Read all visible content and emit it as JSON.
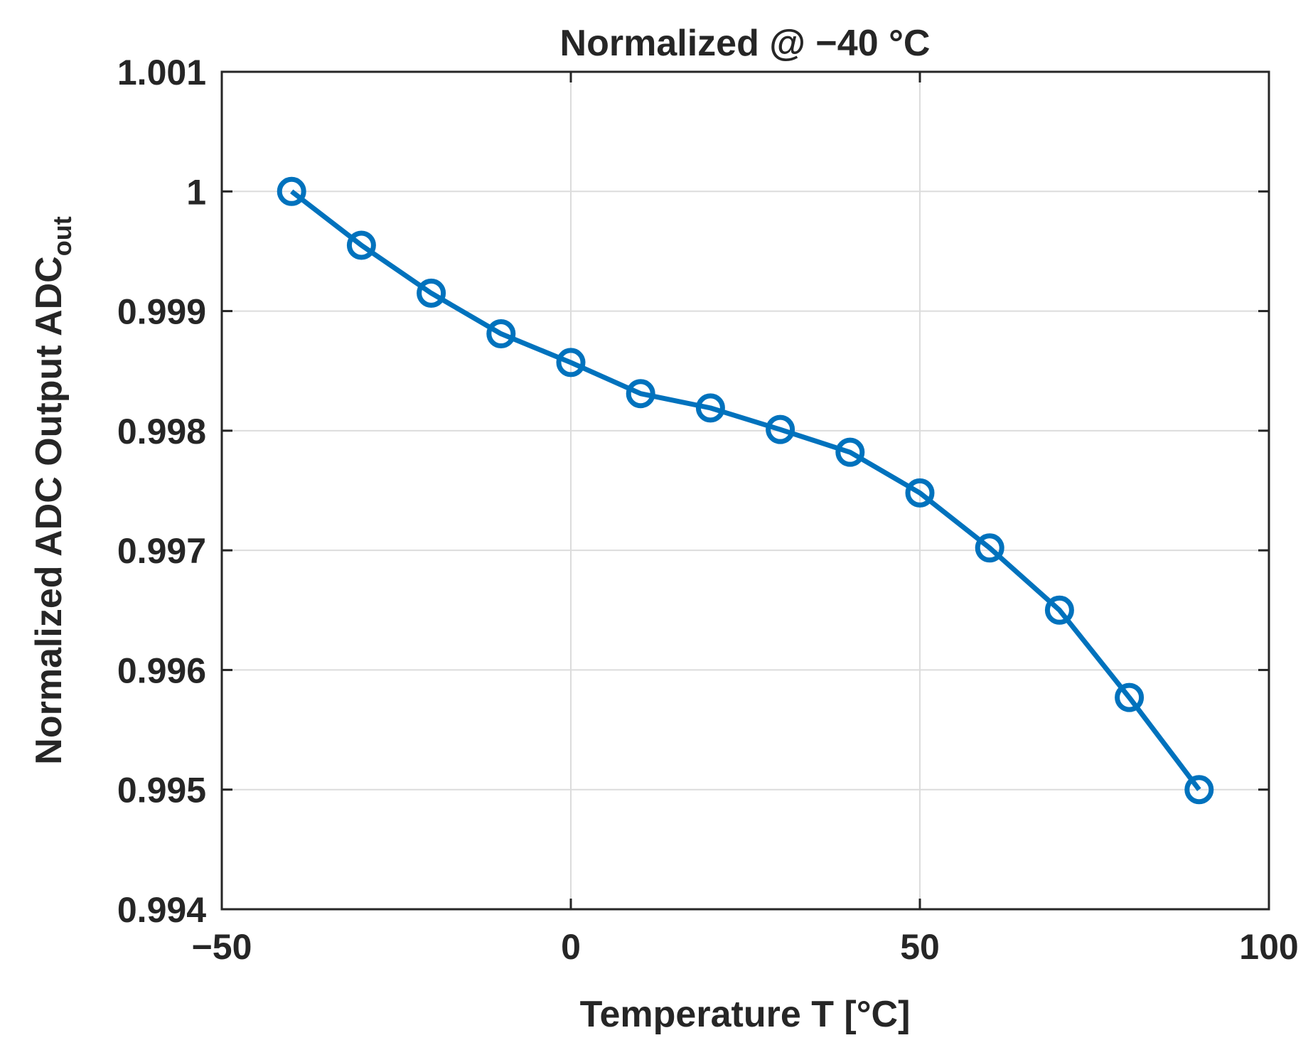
{
  "chart_data": {
    "type": "line",
    "title": "Normalized @ −40 °C",
    "xlabel": "Temperature T [°C]",
    "ylabel": {
      "main": "Normalized ADC Output ADC",
      "subscript": "out"
    },
    "xlim": [
      -50,
      100
    ],
    "ylim": [
      0.994,
      1.001
    ],
    "xticks": [
      -50,
      0,
      50,
      100
    ],
    "xtick_labels": [
      "−50",
      "0",
      "50",
      "100"
    ],
    "yticks": [
      0.994,
      0.995,
      0.996,
      0.997,
      0.998,
      0.999,
      1,
      1.001
    ],
    "ytick_labels": [
      "0.994",
      "0.995",
      "0.996",
      "0.997",
      "0.998",
      "0.999",
      "1",
      "1.001"
    ],
    "grid": true,
    "series": [
      {
        "name": "Normalized ADC output",
        "color": "#0072BD",
        "marker": "circle-open",
        "x": [
          -40,
          -30,
          -20,
          -10,
          0,
          10,
          20,
          30,
          40,
          50,
          60,
          70,
          80,
          90
        ],
        "y": [
          1.0,
          0.99955,
          0.99915,
          0.99881,
          0.99857,
          0.99831,
          0.99819,
          0.99801,
          0.99782,
          0.99748,
          0.99702,
          0.9965,
          0.99577,
          0.995
        ]
      }
    ]
  }
}
